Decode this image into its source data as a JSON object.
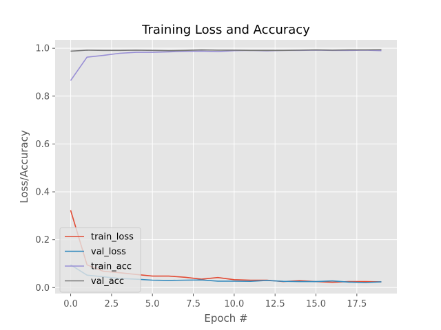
{
  "chart_data": {
    "type": "line",
    "title": "Training Loss and Accuracy",
    "xlabel": "Epoch #",
    "ylabel": "Loss/Accuracy",
    "xlim": [
      -0.95,
      19.95
    ],
    "ylim": [
      -0.025,
      1.035
    ],
    "xticks": [
      0,
      2.5,
      5,
      7.5,
      10,
      12.5,
      15,
      17.5
    ],
    "xtick_labels": [
      "0.0",
      "2.5",
      "5.0",
      "7.5",
      "10.0",
      "12.5",
      "15.0",
      "17.5"
    ],
    "yticks": [
      0.0,
      0.2,
      0.4,
      0.6,
      0.8,
      1.0
    ],
    "ytick_labels": [
      "0.0",
      "0.2",
      "0.4",
      "0.6",
      "0.8",
      "1.0"
    ],
    "grid": true,
    "legend_position": "lower-left",
    "background": "#e5e5e5",
    "x": [
      0,
      1,
      2,
      3,
      4,
      5,
      6,
      7,
      8,
      9,
      10,
      11,
      12,
      13,
      14,
      15,
      16,
      17,
      18,
      19
    ],
    "series": [
      {
        "name": "train_loss",
        "color": "#e24a33",
        "values": [
          0.323,
          0.095,
          0.068,
          0.062,
          0.055,
          0.048,
          0.048,
          0.043,
          0.035,
          0.042,
          0.033,
          0.031,
          0.031,
          0.025,
          0.029,
          0.025,
          0.022,
          0.025,
          0.025,
          0.024
        ]
      },
      {
        "name": "val_loss",
        "color": "#348abd",
        "values": [
          0.095,
          0.052,
          0.045,
          0.038,
          0.035,
          0.031,
          0.03,
          0.031,
          0.032,
          0.027,
          0.027,
          0.026,
          0.03,
          0.026,
          0.025,
          0.025,
          0.028,
          0.023,
          0.021,
          0.024
        ]
      },
      {
        "name": "train_acc",
        "color": "#988ed5",
        "values": [
          0.865,
          0.963,
          0.97,
          0.979,
          0.983,
          0.983,
          0.985,
          0.987,
          0.988,
          0.986,
          0.99,
          0.991,
          0.989,
          0.991,
          0.991,
          0.992,
          0.991,
          0.991,
          0.992,
          0.99
        ]
      },
      {
        "name": "val_acc",
        "color": "#777777",
        "values": [
          0.988,
          0.992,
          0.991,
          0.991,
          0.992,
          0.991,
          0.99,
          0.991,
          0.993,
          0.992,
          0.992,
          0.991,
          0.991,
          0.991,
          0.992,
          0.993,
          0.992,
          0.993,
          0.993,
          0.994
        ]
      }
    ]
  }
}
